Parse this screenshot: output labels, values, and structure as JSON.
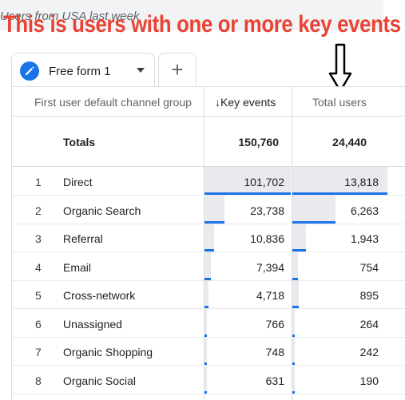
{
  "report_title": "Users from USA last week",
  "annotation": "This is users with one or more key events",
  "tabs": [
    {
      "label": "Free form 1"
    }
  ],
  "add_tab_label": "+",
  "table": {
    "columns": {
      "dimension": "First user default channel group",
      "key_events": "Key events",
      "key_events_sort_arrow": "↓",
      "total_users": "Total users"
    },
    "totals": {
      "label": "Totals",
      "key_events": "150,760",
      "total_users": "24,440"
    },
    "rows": [
      {
        "num": "1",
        "name": "Direct",
        "key_events": "101,702",
        "total_users": "13,818",
        "key_share": 0.675,
        "users_share": 0.565
      },
      {
        "num": "2",
        "name": "Organic Search",
        "key_events": "23,738",
        "total_users": "6,263",
        "key_share": 0.157,
        "users_share": 0.256
      },
      {
        "num": "3",
        "name": "Referral",
        "key_events": "10,836",
        "total_users": "1,943",
        "key_share": 0.072,
        "users_share": 0.08
      },
      {
        "num": "4",
        "name": "Email",
        "key_events": "7,394",
        "total_users": "754",
        "key_share": 0.049,
        "users_share": 0.031
      },
      {
        "num": "5",
        "name": "Cross-network",
        "key_events": "4,718",
        "total_users": "895",
        "key_share": 0.031,
        "users_share": 0.037
      },
      {
        "num": "6",
        "name": "Unassigned",
        "key_events": "766",
        "total_users": "264",
        "key_share": 0.005,
        "users_share": 0.011
      },
      {
        "num": "7",
        "name": "Organic Shopping",
        "key_events": "748",
        "total_users": "242",
        "key_share": 0.005,
        "users_share": 0.01
      },
      {
        "num": "8",
        "name": "Organic Social",
        "key_events": "631",
        "total_users": "190",
        "key_share": 0.004,
        "users_share": 0.008
      }
    ]
  },
  "colors": {
    "accent": "#1a73e8",
    "annotation": "#ea4335"
  }
}
